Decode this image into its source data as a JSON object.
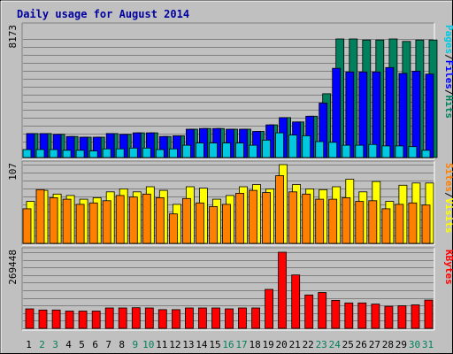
{
  "chart_data": {
    "type": "bar",
    "title": "Daily usage for August 2014",
    "categories": [
      "1",
      "2",
      "3",
      "4",
      "5",
      "6",
      "7",
      "8",
      "9",
      "10",
      "11",
      "12",
      "13",
      "14",
      "15",
      "16",
      "17",
      "18",
      "19",
      "20",
      "21",
      "22",
      "23",
      "24",
      "25",
      "26",
      "27",
      "28",
      "29",
      "30",
      "31"
    ],
    "weekend_days": [
      "2",
      "3",
      "9",
      "10",
      "16",
      "17",
      "23",
      "24",
      "30",
      "31"
    ],
    "weekday_color": "#000000",
    "weekend_color": "#00805C",
    "panels": [
      {
        "id": "requests",
        "ymax_label": "8173",
        "ymax": 8173,
        "legend": [
          {
            "text": "Pages",
            "color": "#00C8E0"
          },
          {
            "text": "/",
            "color": "#000000"
          },
          {
            "text": "Files",
            "color": "#0000FF"
          },
          {
            "text": "/",
            "color": "#000000"
          },
          {
            "text": "Hits",
            "color": "#00805C"
          }
        ],
        "series": [
          {
            "name": "Hits",
            "color": "#00805C",
            "values": [
              1650,
              1650,
              1600,
              1450,
              1400,
              1400,
              1650,
              1600,
              1700,
              1700,
              1450,
              1500,
              1950,
              2000,
              2000,
              1950,
              1950,
              1800,
              2250,
              2750,
              2450,
              2850,
              4400,
              8173,
              8173,
              8100,
              8100,
              8173,
              8000,
              8100,
              8100
            ]
          },
          {
            "name": "Files",
            "color": "#0000FF",
            "values": [
              1650,
              1650,
              1600,
              1450,
              1400,
              1400,
              1650,
              1600,
              1700,
              1700,
              1450,
              1500,
              1950,
              2000,
              2000,
              1950,
              1950,
              1800,
              2250,
              2750,
              2450,
              2850,
              3750,
              6150,
              5900,
              5900,
              5900,
              6200,
              5800,
              5950,
              5750
            ]
          },
          {
            "name": "Pages",
            "color": "#00C8E0",
            "values": [
              550,
              550,
              550,
              500,
              500,
              450,
              600,
              600,
              650,
              650,
              550,
              600,
              850,
              1000,
              1000,
              1000,
              1000,
              850,
              1200,
              1700,
              1550,
              1500,
              1100,
              1050,
              850,
              850,
              900,
              800,
              800,
              750,
              500
            ]
          }
        ]
      },
      {
        "id": "visits",
        "ymax_label": "107",
        "ymax": 107,
        "legend": [
          {
            "text": "Sites",
            "color": "#FF8000"
          },
          {
            "text": "/",
            "color": "#000000"
          },
          {
            "text": "Visits",
            "color": "#FFFF00"
          }
        ],
        "series": [
          {
            "name": "Visits",
            "color": "#FFFF00",
            "values": [
              57,
              72,
              67,
              65,
              60,
              62,
              70,
              74,
              70,
              77,
              72,
              53,
              77,
              75,
              60,
              65,
              77,
              80,
              74,
              107,
              80,
              74,
              73,
              77,
              87,
              70,
              84,
              57,
              79,
              82,
              82
            ]
          },
          {
            "name": "Sites",
            "color": "#FF8000",
            "values": [
              47,
              73,
              62,
              60,
              53,
              55,
              58,
              65,
              63,
              67,
              62,
              40,
              61,
              55,
              50,
              53,
              68,
              72,
              69,
              92,
              70,
              67,
              60,
              60,
              62,
              57,
              58,
              47,
              53,
              55,
              52
            ]
          }
        ]
      },
      {
        "id": "kbytes",
        "ymax_label": "269448",
        "ymax": 269448,
        "legend": [
          {
            "text": "KBytes",
            "color": "#FF0000"
          }
        ],
        "series": [
          {
            "name": "KBytes",
            "color": "#FF0000",
            "values": [
              69000,
              65000,
              65000,
              61000,
              61000,
              61000,
              72000,
              72000,
              73000,
              72000,
              66000,
              66000,
              72000,
              72000,
              72000,
              69000,
              72000,
              72000,
              138000,
              269448,
              189000,
              118000,
              127000,
              99000,
              90000,
              90000,
              86000,
              78000,
              80000,
              83000,
              100000
            ]
          }
        ]
      }
    ]
  }
}
